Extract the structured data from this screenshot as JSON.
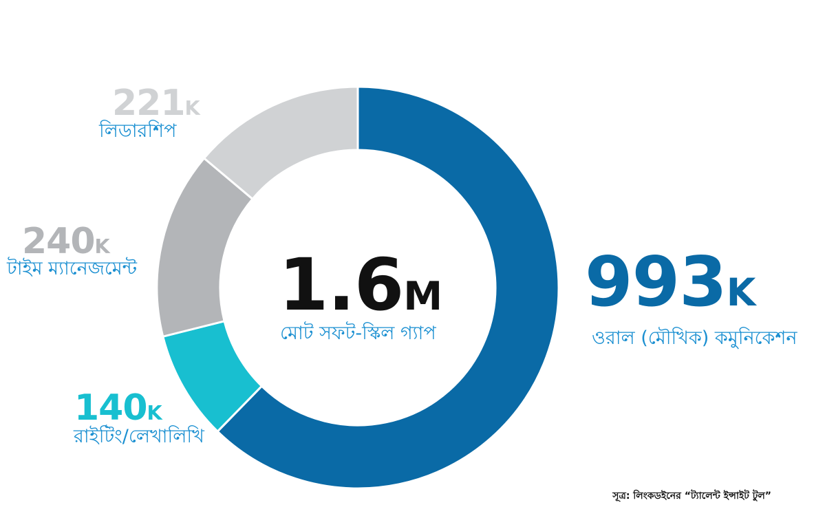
{
  "chart_data": {
    "type": "pie",
    "variant": "donut",
    "center": {
      "value": "1.6",
      "unit": "M",
      "label": "মোট সফট-স্কিল গ্যাপ"
    },
    "slices": [
      {
        "label": "ওরাল (মৌখিক) কমুনিকেশন",
        "value": 993,
        "display_value": "993",
        "unit": "K",
        "color": "#0a6aa6",
        "value_color": "#0a6aa6"
      },
      {
        "label": "রাইটিং/লেখালিখি",
        "value": 140,
        "display_value": "140",
        "unit": "K",
        "color": "#18bfd0",
        "value_color": "#18bfd0"
      },
      {
        "label": "টাইম ম্যানেজমেন্ট",
        "value": 240,
        "display_value": "240",
        "unit": "K",
        "color": "#b3b5b8",
        "value_color": "#b3b5b8"
      },
      {
        "label": "লিডারশিপ",
        "value": 221,
        "display_value": "221",
        "unit": "K",
        "color": "#d0d2d4",
        "value_color": "#d0d2d4"
      }
    ]
  },
  "source": "সূত্র: লিংকডইনের “ট্যালেন্ট ইন্সাইট টুল”"
}
